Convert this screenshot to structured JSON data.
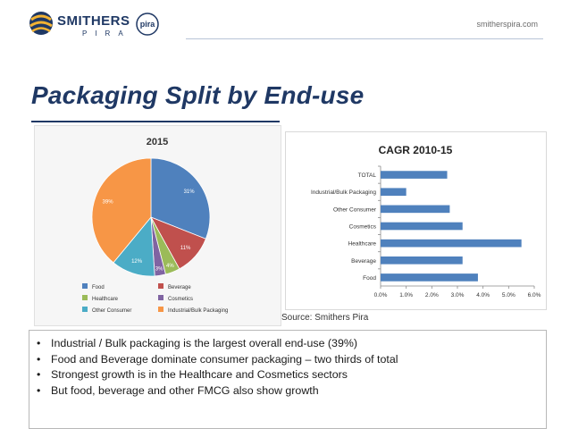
{
  "header": {
    "logo_main": "SMITHERS",
    "logo_sub": "PIRA",
    "logo_badge": "pira",
    "site_url": "smitherspira.com"
  },
  "title": "Packaging Split by End-use",
  "source": "Source: Smithers Pira",
  "bullets": [
    "Industrial / Bulk packaging is the largest overall end-use (39%)",
    "Food and Beverage dominate consumer packaging – two thirds of total",
    "Strongest growth is in the Healthcare and Cosmetics sectors",
    "But food, beverage and other FMCG also show growth"
  ],
  "colors": {
    "title": "#1f3864",
    "bar": "#4f81bd",
    "food": "#4f81bd",
    "beverage": "#c0504d",
    "healthcare": "#9bbb59",
    "cosmetics": "#8064a2",
    "other_consumer": "#4bacc6",
    "industrial": "#f79646"
  },
  "chart_data": [
    {
      "type": "pie",
      "title": "2015",
      "slices": [
        {
          "label": "Food",
          "value": 31,
          "display": "31%",
          "color": "#4f81bd"
        },
        {
          "label": "Beverage",
          "value": 11,
          "display": "11%",
          "color": "#c0504d"
        },
        {
          "label": "Healthcare",
          "value": 4,
          "display": "4%",
          "color": "#9bbb59"
        },
        {
          "label": "Cosmetics",
          "value": 3,
          "display": "3%",
          "color": "#8064a2"
        },
        {
          "label": "Other Consumer",
          "value": 12,
          "display": "12%",
          "color": "#4bacc6"
        },
        {
          "label": "Industrial/Bulk Packaging",
          "value": 39,
          "display": "39%",
          "color": "#f79646"
        }
      ],
      "legend": [
        "Food",
        "Beverage",
        "Healthcare",
        "Cosmetics",
        "Other Consumer",
        "Industrial/Bulk Packaging"
      ],
      "legend_position": "bottom"
    },
    {
      "type": "bar",
      "orientation": "horizontal",
      "title": "CAGR 2010-15",
      "categories": [
        "TOTAL",
        "Industrial/Bulk Packaging",
        "Other Consumer",
        "Cosmetics",
        "Healthcare",
        "Beverage",
        "Food"
      ],
      "values": [
        2.6,
        1.0,
        2.7,
        3.2,
        5.5,
        3.2,
        3.8
      ],
      "xlim": [
        0,
        6
      ],
      "xticks": [
        "0.0%",
        "1.0%",
        "2.0%",
        "3.0%",
        "4.0%",
        "5.0%",
        "6.0%"
      ],
      "color": "#4f81bd",
      "grid": false
    }
  ]
}
